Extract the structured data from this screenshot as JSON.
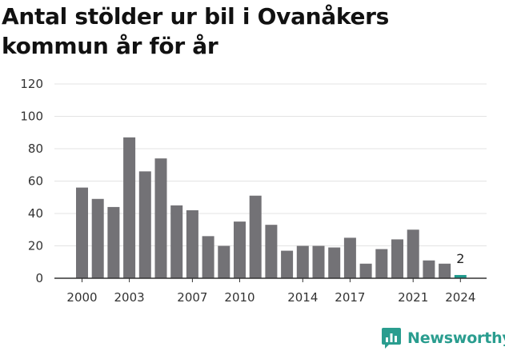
{
  "title": "Antal stölder ur bil i Ovanåkers kommun år för år",
  "brand": {
    "name": "Newsworthy",
    "icon": "newsworthy-logo-icon",
    "color": "#2a9d8f"
  },
  "chart_data": {
    "type": "bar",
    "title": "Antal stölder ur bil i Ovanåkers kommun år för år",
    "xlabel": "",
    "ylabel": "",
    "categories": [
      "2000",
      "2001",
      "2002",
      "2003",
      "2004",
      "2005",
      "2006",
      "2007",
      "2008",
      "2009",
      "2010",
      "2011",
      "2012",
      "2013",
      "2014",
      "2015",
      "2016",
      "2017",
      "2018",
      "2019",
      "2020",
      "2021",
      "2022",
      "2023",
      "2024"
    ],
    "values": [
      56,
      49,
      44,
      87,
      66,
      74,
      45,
      42,
      26,
      20,
      35,
      51,
      33,
      17,
      20,
      20,
      19,
      25,
      9,
      18,
      24,
      30,
      11,
      9,
      2
    ],
    "x_tick_labels": [
      "2000",
      "2003",
      "2007",
      "2010",
      "2014",
      "2017",
      "2021",
      "2024"
    ],
    "y_ticks": [
      0,
      20,
      40,
      60,
      80,
      100,
      120
    ],
    "ylim": [
      0,
      120
    ],
    "grid": true,
    "bar_color": "#737276",
    "highlight_color": "#1e9a8d",
    "highlight_category": "2024",
    "data_labels": [
      {
        "category": "2024",
        "value": "2"
      }
    ]
  }
}
